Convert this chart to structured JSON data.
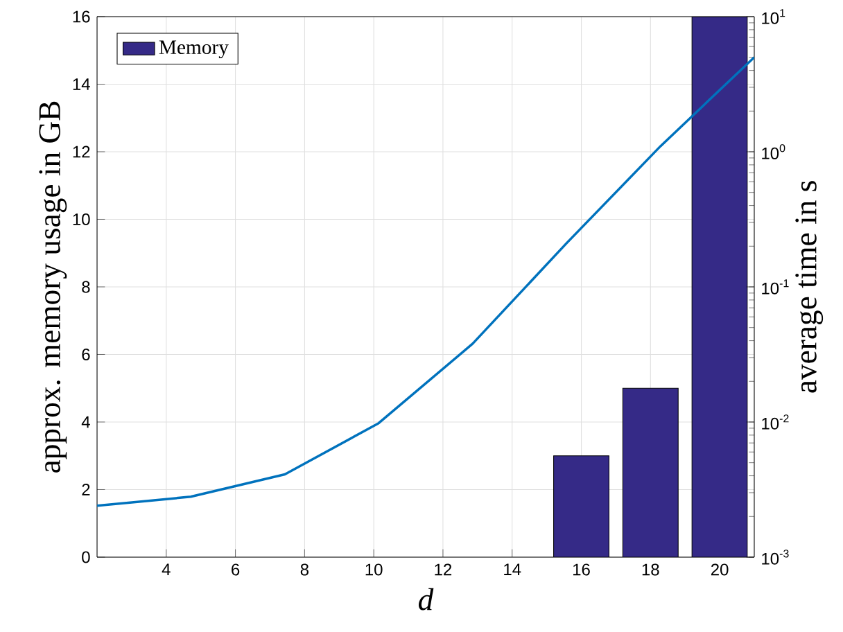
{
  "chart_data": {
    "type": "bar",
    "xlabel": "*d*",
    "ylabel": "approx. memory usage in GB",
    "y2label": "average time in s",
    "xlim": [
      2,
      21
    ],
    "xticks": [
      4,
      6,
      8,
      10,
      12,
      14,
      16,
      18,
      20
    ],
    "ylim": [
      0,
      16
    ],
    "yticks": [
      0,
      2,
      4,
      6,
      8,
      10,
      12,
      14,
      16
    ],
    "y2lim": [
      0.001,
      10
    ],
    "y2ticks": [
      {
        "value": 0.001,
        "label": "10$^{-3}$"
      },
      {
        "value": 0.01,
        "label": "10$^{-2}$"
      },
      {
        "value": 0.1,
        "label": "10$^{-1}$"
      },
      {
        "value": 1,
        "label": "10$^{0}$"
      },
      {
        "value": 10,
        "label": "10$^{1}$"
      }
    ],
    "log": "y2",
    "grid": true,
    "legend": "top left",
    "series": [
      {
        "name": "Memory",
        "color": "#352a87",
        "x": [
          16,
          18,
          20
        ],
        "values": [
          3,
          5,
          16
        ]
      },
      {
        "type": "line",
        "axis": "y2",
        "color": "#0072bd",
        "x": [
          2,
          4.71,
          7.43,
          10.14,
          12.86,
          15.57,
          18.29,
          21
        ],
        "values": [
          0.0024,
          0.0028,
          0.0041,
          0.0098,
          0.038,
          0.21,
          1.1,
          5.0
        ]
      }
    ]
  }
}
